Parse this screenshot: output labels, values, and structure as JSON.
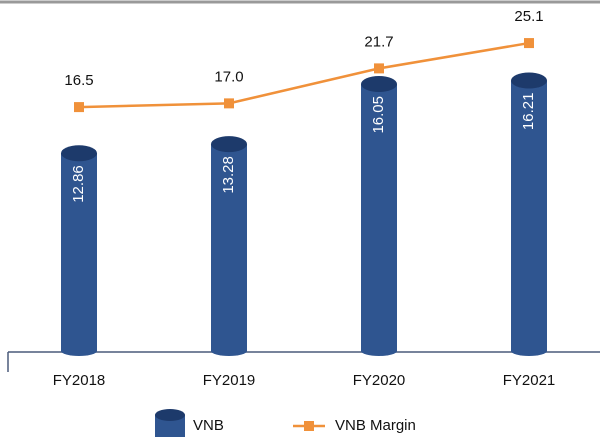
{
  "chart_data": {
    "type": "bar",
    "categories": [
      "FY2018",
      "FY2019",
      "FY2020",
      "FY2021"
    ],
    "series": [
      {
        "name": "VNB",
        "type": "bar",
        "color": "#2f5590",
        "values": [
          12.86,
          13.28,
          16.05,
          16.21
        ]
      },
      {
        "name": "VNB Margin",
        "type": "line",
        "axis": "y2",
        "color": "#f0913a",
        "values": [
          16.5,
          17,
          21.7,
          25.1
        ],
        "value_labels": [
          "16.5",
          "17.0",
          "21.7",
          "25.1"
        ]
      }
    ],
    "ylim": [
      3.7,
      19
    ],
    "y2lim": [
      -16.4,
      28.2
    ],
    "legend": "bottom"
  }
}
